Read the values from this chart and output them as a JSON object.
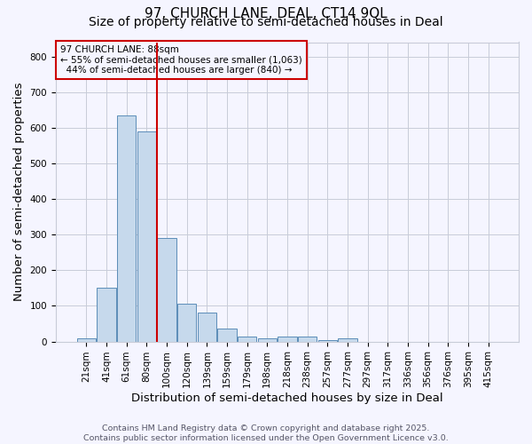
{
  "title1": "97, CHURCH LANE, DEAL, CT14 9QL",
  "title2": "Size of property relative to semi-detached houses in Deal",
  "xlabel": "Distribution of semi-detached houses by size in Deal",
  "ylabel": "Number of semi-detached properties",
  "categories": [
    "21sqm",
    "41sqm",
    "61sqm",
    "80sqm",
    "100sqm",
    "120sqm",
    "139sqm",
    "159sqm",
    "179sqm",
    "198sqm",
    "218sqm",
    "238sqm",
    "257sqm",
    "277sqm",
    "297sqm",
    "317sqm",
    "336sqm",
    "356sqm",
    "376sqm",
    "395sqm",
    "415sqm"
  ],
  "values": [
    10,
    150,
    635,
    590,
    290,
    105,
    80,
    37,
    15,
    10,
    13,
    13,
    5,
    10,
    0,
    0,
    0,
    0,
    0,
    0,
    0
  ],
  "bar_color": "#c6d9ec",
  "bar_edge_color": "#5b8db8",
  "red_line_x": 3.5,
  "property_size": "88sqm",
  "pct_smaller": 55,
  "count_smaller": 1063,
  "pct_larger": 44,
  "count_larger": 840,
  "annotation_box_color": "#cc0000",
  "ylim": [
    0,
    840
  ],
  "yticks": [
    0,
    100,
    200,
    300,
    400,
    500,
    600,
    700,
    800
  ],
  "footnote1": "Contains HM Land Registry data © Crown copyright and database right 2025.",
  "footnote2": "Contains public sector information licensed under the Open Government Licence v3.0.",
  "bg_color": "#f5f5ff",
  "grid_color": "#c8ccd8",
  "title_fontsize": 11,
  "subtitle_fontsize": 10,
  "axis_label_fontsize": 9.5,
  "tick_fontsize": 7.5,
  "annot_fontsize": 7.5,
  "footnote_fontsize": 6.8
}
